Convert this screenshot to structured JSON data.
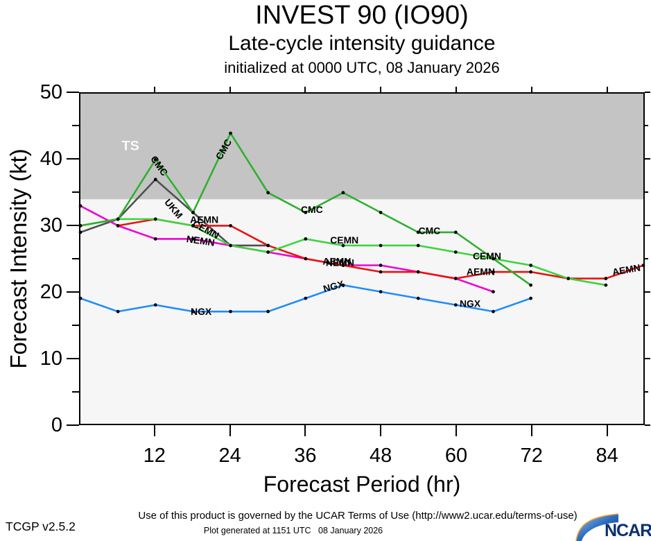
{
  "header": {
    "title": "INVEST 90 (IO90)",
    "subtitle": "Late-cycle intensity guidance",
    "init_line": "initialized at 0000 UTC, 08 January 2026"
  },
  "footer": {
    "terms": "Use of this product is governed by the UCAR Terms of Use (http://www2.ucar.edu/terms-of-use)",
    "generated": "Plot generated at 1151 UTC   08 January 2026",
    "version": "TCGP v2.5.2",
    "logo_text": "NCAR"
  },
  "chart_data": {
    "type": "line",
    "title": "INVEST 90 (IO90)",
    "subtitle": "Late-cycle intensity guidance",
    "xlabel": "Forecast Period (hr)",
    "ylabel": "Forecast Intensity (kt)",
    "xlim": [
      0,
      90
    ],
    "ylim": [
      0,
      50
    ],
    "x_ticks": [
      12,
      24,
      36,
      48,
      60,
      72,
      84
    ],
    "y_ticks": [
      0,
      10,
      20,
      30,
      40,
      50
    ],
    "y_minor_ticks": [
      5,
      15,
      25,
      35,
      45
    ],
    "grid": false,
    "legend": "in-line labels",
    "marker_color": "#000000",
    "ts_zone": {
      "label": "TS",
      "threshold_kt": 34,
      "color": "#c4c4c4",
      "label_color": "#fafafa",
      "label_hr": 8,
      "label_kt": 42,
      "label_size": 20
    },
    "series": [
      {
        "name": "UKM",
        "color": "#4f4f4f",
        "points": [
          [
            0,
            29
          ],
          [
            6,
            31
          ],
          [
            12,
            37
          ],
          [
            18,
            32
          ],
          [
            24,
            27
          ],
          [
            30,
            27
          ]
        ]
      },
      {
        "name": "NEMN",
        "color": "#f000d2",
        "points": [
          [
            0,
            33
          ],
          [
            6,
            30
          ],
          [
            12,
            28
          ],
          [
            18,
            28
          ],
          [
            24,
            27
          ],
          [
            30,
            26
          ],
          [
            36,
            25
          ],
          [
            42,
            24
          ],
          [
            48,
            24
          ],
          [
            54,
            23
          ],
          [
            60,
            22
          ],
          [
            66,
            20
          ]
        ]
      },
      {
        "name": "AEMN",
        "color": "#e81212",
        "points": [
          [
            6,
            30
          ],
          [
            12,
            31
          ],
          [
            18,
            30
          ],
          [
            24,
            30
          ],
          [
            30,
            27
          ],
          [
            36,
            25
          ],
          [
            42,
            24
          ],
          [
            48,
            23
          ],
          [
            54,
            23
          ],
          [
            60,
            22
          ],
          [
            66,
            23
          ],
          [
            72,
            23
          ],
          [
            78,
            22
          ],
          [
            84,
            22
          ],
          [
            90,
            24
          ]
        ]
      },
      {
        "name": "NGX",
        "color": "#1e8cff",
        "points": [
          [
            0,
            19
          ],
          [
            6,
            17
          ],
          [
            12,
            18
          ],
          [
            18,
            17
          ],
          [
            24,
            17
          ],
          [
            30,
            17
          ],
          [
            36,
            19
          ],
          [
            42,
            21
          ],
          [
            48,
            20
          ],
          [
            54,
            19
          ],
          [
            60,
            18
          ],
          [
            66,
            17
          ],
          [
            72,
            19
          ]
        ]
      },
      {
        "name": "CEMN",
        "color": "#3cd43c",
        "points": [
          [
            0,
            30
          ],
          [
            6,
            31
          ],
          [
            12,
            31
          ],
          [
            18,
            30
          ],
          [
            24,
            27
          ],
          [
            30,
            26
          ],
          [
            36,
            28
          ],
          [
            42,
            27
          ],
          [
            48,
            27
          ],
          [
            54,
            27
          ],
          [
            60,
            26
          ],
          [
            66,
            25
          ],
          [
            72,
            24
          ],
          [
            78,
            22
          ],
          [
            84,
            21
          ]
        ]
      },
      {
        "name": "CMC",
        "color": "#2eb02e",
        "points": [
          [
            0,
            30
          ],
          [
            6,
            31
          ],
          [
            12,
            40
          ],
          [
            18,
            32
          ],
          [
            24,
            44
          ],
          [
            30,
            35
          ],
          [
            36,
            32
          ],
          [
            42,
            35
          ],
          [
            48,
            32
          ],
          [
            54,
            29
          ],
          [
            60,
            29
          ],
          [
            66,
            25
          ],
          [
            72,
            21
          ]
        ]
      }
    ],
    "labels": [
      {
        "text": "CMC",
        "hr": 12.5,
        "kt": 39.0,
        "rot": 55
      },
      {
        "text": "CMC",
        "hr": 23.0,
        "kt": 41.5,
        "rot": -60
      },
      {
        "text": "CMC",
        "hr": 37.0,
        "kt": 32.3,
        "rot": 0
      },
      {
        "text": "CMC",
        "hr": 55.8,
        "kt": 29.1,
        "rot": 0
      },
      {
        "text": "UKM",
        "hr": 14.8,
        "kt": 32.5,
        "rot": 50
      },
      {
        "text": "AEMN",
        "hr": 19.8,
        "kt": 30.8,
        "rot": 0
      },
      {
        "text": "CEMN",
        "hr": 20.0,
        "kt": 29.3,
        "rot": 28
      },
      {
        "text": "NEMN",
        "hr": 19.2,
        "kt": 27.6,
        "rot": 8
      },
      {
        "text": "CEMN",
        "hr": 42.2,
        "kt": 27.7,
        "rot": 0
      },
      {
        "text": "AEMN",
        "hr": 41.0,
        "kt": 24.5,
        "rot": 0
      },
      {
        "text": "NEMN",
        "hr": 41.5,
        "kt": 24.3,
        "rot": 0
      },
      {
        "text": "CEMN",
        "hr": 65.0,
        "kt": 25.3,
        "rot": 0
      },
      {
        "text": "AEMN",
        "hr": 64.0,
        "kt": 22.9,
        "rot": 0
      },
      {
        "text": "AEMN",
        "hr": 87.3,
        "kt": 23.2,
        "rot": -10
      },
      {
        "text": "NGX",
        "hr": 19.3,
        "kt": 16.9,
        "rot": 0
      },
      {
        "text": "NGX",
        "hr": 40.5,
        "kt": 20.7,
        "rot": -15
      },
      {
        "text": "NGX",
        "hr": 62.3,
        "kt": 18.1,
        "rot": 0
      }
    ]
  }
}
